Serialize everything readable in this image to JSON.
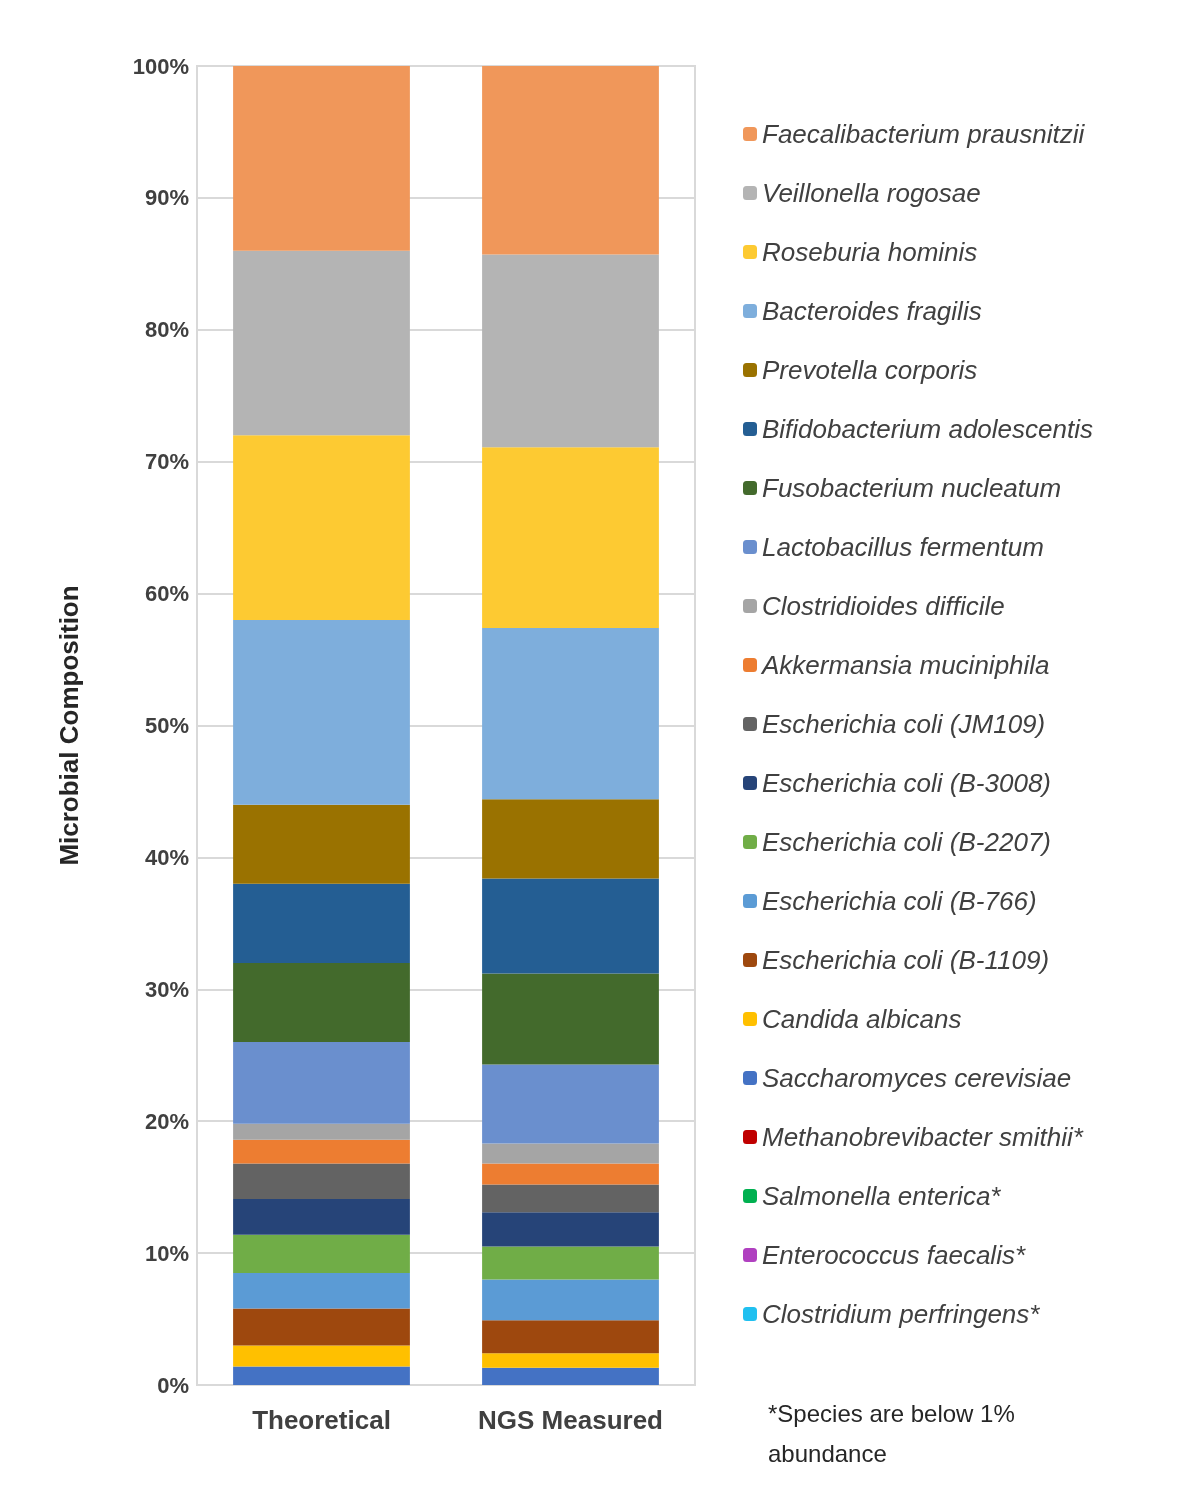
{
  "chart_data": {
    "type": "bar",
    "stacked": true,
    "ylabel": "Microbial Composition",
    "categories": [
      "Theoretical",
      "NGS Measured"
    ],
    "ylim": [
      0,
      100
    ],
    "yticks": [
      {
        "value": 0,
        "label": "0%"
      },
      {
        "value": 10,
        "label": "10%"
      },
      {
        "value": 20,
        "label": "20%"
      },
      {
        "value": 30,
        "label": "30%"
      },
      {
        "value": 40,
        "label": "40%"
      },
      {
        "value": 50,
        "label": "50%"
      },
      {
        "value": 60,
        "label": "60%"
      },
      {
        "value": 70,
        "label": "70%"
      },
      {
        "value": 80,
        "label": "80%"
      },
      {
        "value": 90,
        "label": "90%"
      },
      {
        "value": 100,
        "label": "100%"
      }
    ],
    "grid": "y",
    "legend": "right",
    "annotations": [
      "*Species are below 1% abundance"
    ],
    "series": [
      {
        "name": "Clostridium perfringens*",
        "color": "#20c0f0",
        "values": [
          0,
          0
        ]
      },
      {
        "name": "Enterococcus faecalis*",
        "color": "#b040c0",
        "values": [
          0,
          0
        ]
      },
      {
        "name": "Salmonella enterica*",
        "color": "#00b050",
        "values": [
          0,
          0
        ]
      },
      {
        "name": "Methanobrevibacter smithii*",
        "color": "#c00000",
        "values": [
          0,
          0
        ]
      },
      {
        "name": "Saccharomyces cerevisiae",
        "color": "#4472c4",
        "values": [
          1.4,
          1.3
        ]
      },
      {
        "name": "Candida albicans",
        "color": "#ffc000",
        "values": [
          1.6,
          1.1
        ]
      },
      {
        "name": "Escherichia coli (B-1109)",
        "color": "#9e480e",
        "values": [
          2.8,
          2.5
        ]
      },
      {
        "name": "Escherichia coli (B-766)",
        "color": "#5b9bd5",
        "values": [
          2.7,
          3.1
        ]
      },
      {
        "name": "Escherichia coli (B-2207)",
        "color": "#70ad47",
        "values": [
          2.9,
          2.5
        ]
      },
      {
        "name": "Escherichia coli (B-3008)",
        "color": "#264478",
        "values": [
          2.7,
          2.6
        ]
      },
      {
        "name": "Escherichia coli (JM109)",
        "color": "#636363",
        "values": [
          2.7,
          2.1
        ]
      },
      {
        "name": "Akkermansia muciniphila",
        "color": "#ed7d31",
        "values": [
          1.8,
          1.6
        ]
      },
      {
        "name": "Clostridioides difficile",
        "color": "#a5a5a5",
        "values": [
          1.2,
          1.5
        ]
      },
      {
        "name": "Lactobacillus fermentum",
        "color": "#6a8fce",
        "values": [
          6.2,
          6.0
        ]
      },
      {
        "name": "Fusobacterium nucleatum",
        "color": "#436a2c",
        "values": [
          6,
          6.9
        ]
      },
      {
        "name": "Bifidobacterium adolescentis",
        "color": "#245e93",
        "values": [
          6,
          7.2
        ]
      },
      {
        "name": "Prevotella corporis",
        "color": "#9a7200",
        "values": [
          6,
          6.0
        ]
      },
      {
        "name": "Bacteroides fragilis",
        "color": "#7eaedc",
        "values": [
          14,
          13.0
        ]
      },
      {
        "name": "Roseburia hominis",
        "color": "#fdca32",
        "values": [
          14,
          13.7
        ]
      },
      {
        "name": "Veillonella rogosae",
        "color": "#b4b4b4",
        "values": [
          14,
          14.6
        ]
      },
      {
        "name": "Faecalibacterium prausnitzii",
        "color": "#f0975a",
        "values": [
          14,
          14.3
        ]
      }
    ]
  }
}
